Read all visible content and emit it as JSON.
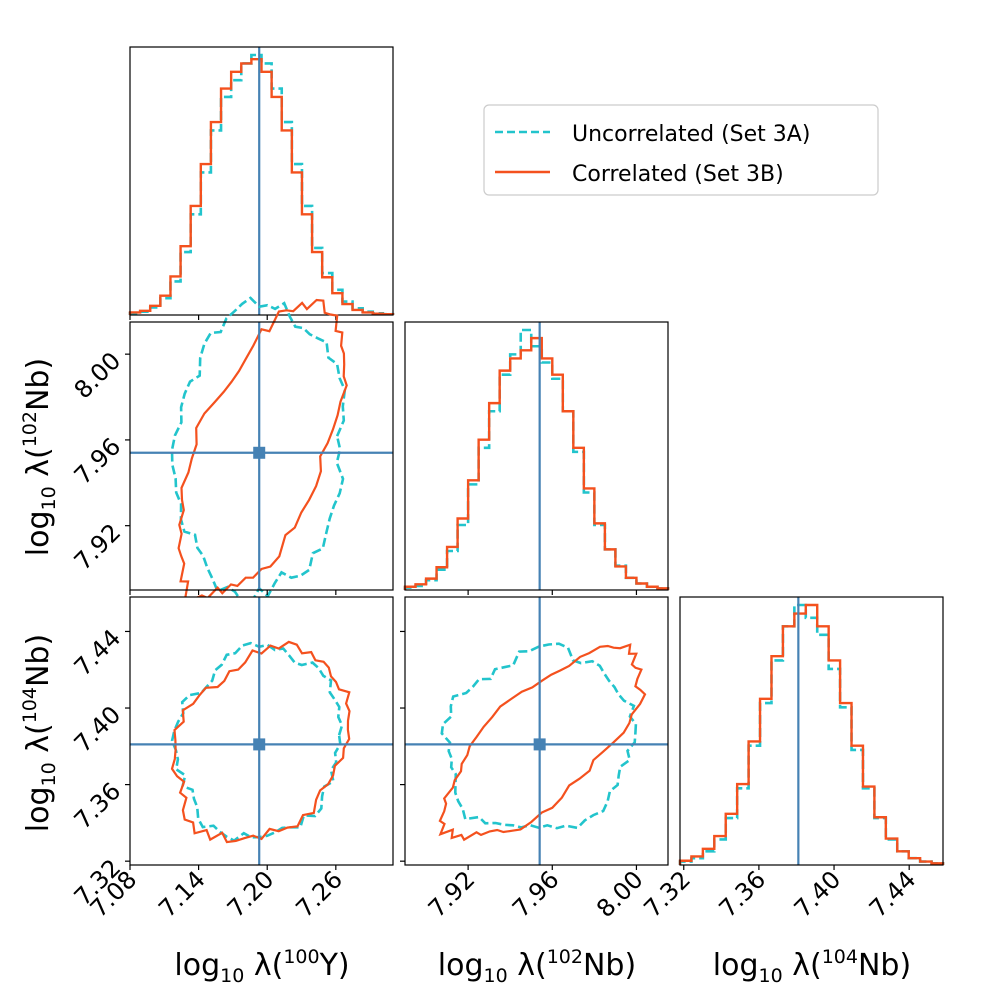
{
  "colors": {
    "uncorrelated": "#22c4cc",
    "correlated": "#f4511e",
    "truth": "#4682b4",
    "axis": "#000000"
  },
  "legend": {
    "position": "upper-right",
    "uncorrelated_label": "Uncorrelated (Set 3A)",
    "correlated_label": "Correlated (Set 3B)"
  },
  "labels": {
    "x": [
      {
        "pre": "log",
        "sub": "10",
        "mid": " λ(",
        "sup": "100",
        "post": "Y)"
      },
      {
        "pre": "log",
        "sub": "10",
        "mid": " λ(",
        "sup": "102",
        "post": "Nb)"
      },
      {
        "pre": "log",
        "sub": "10",
        "mid": " λ(",
        "sup": "104",
        "post": "Nb)"
      }
    ],
    "y": [
      {
        "pre": "log",
        "sub": "10",
        "mid": " λ(",
        "sup": "102",
        "post": "Nb)"
      },
      {
        "pre": "log",
        "sub": "10",
        "mid": " λ(",
        "sup": "104",
        "post": "Nb)"
      }
    ]
  },
  "chart_data": {
    "type": "corner",
    "parameters": [
      "log10 λ(100Y)",
      "log10 λ(102Nb)",
      "log10 λ(104Nb)"
    ],
    "truth": [
      7.193,
      7.954,
      7.381
    ],
    "ranges": [
      [
        7.08,
        7.31
      ],
      [
        7.89,
        8.015
      ],
      [
        7.318,
        7.458
      ]
    ],
    "ticks": [
      [
        "7.08",
        "7.14",
        "7.20",
        "7.26"
      ],
      [
        "7.92",
        "7.96",
        "8.00"
      ],
      [
        "7.32",
        "7.36",
        "7.40",
        "7.44"
      ]
    ],
    "histograms": [
      {
        "edges": [
          7.08,
          7.31
        ],
        "uncorrelated": [
          0.2,
          0.4,
          0.9,
          2,
          4,
          7.5,
          12,
          17,
          22,
          26,
          28,
          30,
          31,
          30,
          27,
          23,
          18,
          13,
          8,
          5,
          3,
          1.6,
          0.8,
          0.4,
          0.2,
          0.1
        ],
        "correlated": [
          0.3,
          0.5,
          1.1,
          2.3,
          4.6,
          8.2,
          13,
          18,
          23,
          27,
          29,
          30,
          30.5,
          29,
          26,
          22,
          17,
          12,
          7.5,
          4.5,
          2.6,
          1.3,
          0.6,
          0.3,
          0.15,
          0.1
        ]
      },
      {
        "edges": [
          7.89,
          8.015
        ],
        "uncorrelated": [
          0.3,
          0.5,
          1.2,
          2.5,
          4.8,
          8,
          13,
          17.5,
          22,
          26.5,
          29,
          32,
          30,
          28,
          26,
          22,
          17,
          12,
          8,
          5,
          3,
          1.5,
          0.8,
          0.4,
          0.2
        ],
        "correlated": [
          0.4,
          0.7,
          1.4,
          2.8,
          5.3,
          8.8,
          13.5,
          18.5,
          23,
          27,
          28.5,
          29.5,
          31,
          28.5,
          26.5,
          22,
          17.5,
          12.5,
          8.2,
          5,
          2.9,
          1.5,
          0.8,
          0.4,
          0.2
        ]
      },
      {
        "edges": [
          7.318,
          7.458
        ],
        "uncorrelated": [
          0.4,
          0.8,
          1.6,
          3,
          5.5,
          9,
          14,
          19,
          24,
          28,
          30.5,
          29,
          27,
          23,
          18.5,
          13.5,
          9,
          5.5,
          3,
          1.6,
          0.8,
          0.4,
          0.2
        ],
        "correlated": [
          0.5,
          1,
          1.9,
          3.4,
          6,
          9.5,
          14.5,
          19.5,
          24.5,
          28,
          29.5,
          30.5,
          28,
          24,
          19,
          14,
          9.2,
          5.6,
          3.1,
          1.6,
          0.8,
          0.4,
          0.2
        ]
      }
    ],
    "contours": [
      {
        "row": 1,
        "col": 0,
        "uncorrelated": {
          "center": [
            7.193,
            7.9555
          ],
          "sx": 0.0335,
          "sy": 0.031,
          "rho": 0.1,
          "k": 2.2
        },
        "correlated": {
          "center": [
            7.195,
            7.955
          ],
          "sx": 0.0335,
          "sy": 0.031,
          "rho": 0.6,
          "k": 2.2
        }
      },
      {
        "row": 2,
        "col": 0,
        "uncorrelated": {
          "center": [
            7.193,
            7.382
          ],
          "sx": 0.0325,
          "sy": 0.0225,
          "rho": 0.08,
          "k": 2.2
        },
        "correlated": {
          "center": [
            7.195,
            7.381
          ],
          "sx": 0.0345,
          "sy": 0.0225,
          "rho": 0.25,
          "k": 2.2
        }
      },
      {
        "row": 2,
        "col": 1,
        "uncorrelated": {
          "center": [
            7.9535,
            7.382
          ],
          "sx": 0.0205,
          "sy": 0.0215,
          "rho": 0.1,
          "k": 2.2
        },
        "correlated": {
          "center": [
            7.955,
            7.381
          ],
          "sx": 0.0215,
          "sy": 0.0225,
          "rho": 0.72,
          "k": 2.2
        }
      }
    ]
  }
}
